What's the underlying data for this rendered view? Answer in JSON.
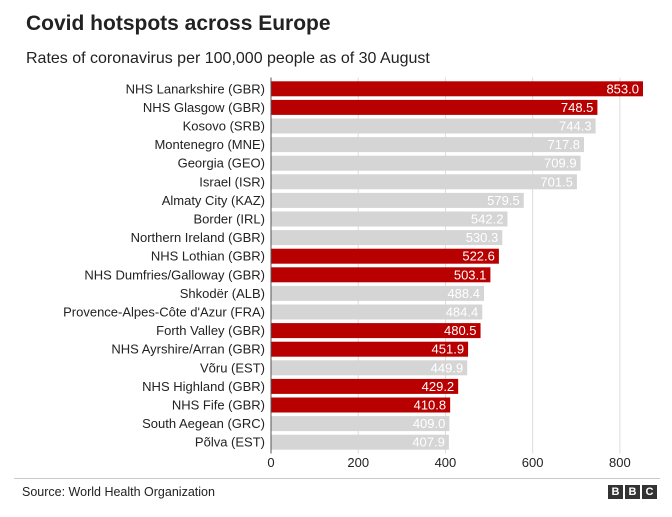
{
  "header": {
    "title": "Covid hotspots across Europe",
    "subtitle": "Rates of coronavirus per 100,000 people as of 30 August"
  },
  "footer": {
    "source": "Source: World Health Organization",
    "logo_letters": [
      "B",
      "B",
      "C"
    ]
  },
  "colors": {
    "highlight": "#b80000",
    "default": "#d5d5d5",
    "label_text": "#ffffff"
  },
  "chart_data": {
    "type": "bar",
    "orientation": "horizontal",
    "title": "Covid hotspots across Europe",
    "subtitle": "Rates of coronavirus per 100,000 people as of 30 August",
    "xlabel": "",
    "ylabel": "",
    "xlim": [
      0,
      900
    ],
    "xticks": [
      0,
      200,
      400,
      600,
      800
    ],
    "grid": true,
    "categories": [
      "NHS Lanarkshire (GBR)",
      "NHS Glasgow (GBR)",
      "Kosovo (SRB)",
      "Montenegro (MNE)",
      "Georgia (GEO)",
      "Israel (ISR)",
      "Almaty City (KAZ)",
      "Border (IRL)",
      "Northern Ireland (GBR)",
      "NHS Lothian (GBR)",
      "NHS Dumfries/Galloway (GBR)",
      "Shkodër (ALB)",
      "Provence-Alpes-Côte d'Azur (FRA)",
      "Forth Valley (GBR)",
      "NHS Ayrshire/Arran (GBR)",
      "Võru (EST)",
      "NHS Highland (GBR)",
      "NHS Fife (GBR)",
      "South Aegean (GRC)",
      "Põlva (EST)"
    ],
    "values": [
      853.0,
      748.5,
      744.3,
      717.8,
      709.9,
      701.5,
      579.5,
      542.2,
      530.3,
      522.6,
      503.1,
      488.4,
      484.4,
      480.5,
      451.9,
      449.9,
      429.2,
      410.8,
      409.0,
      407.9
    ],
    "value_labels": [
      "853.0",
      "748.5",
      "744.3",
      "717.8",
      "709.9",
      "701.5",
      "579.5",
      "542.2",
      "530.3",
      "522.6",
      "503.1",
      "488.4",
      "484.4",
      "480.5",
      "451.9",
      "449.9",
      "429.2",
      "410.8",
      "409.0",
      "407.9"
    ],
    "highlighted": [
      true,
      true,
      false,
      false,
      false,
      false,
      false,
      false,
      false,
      true,
      true,
      false,
      false,
      true,
      true,
      false,
      true,
      true,
      false,
      false
    ]
  }
}
